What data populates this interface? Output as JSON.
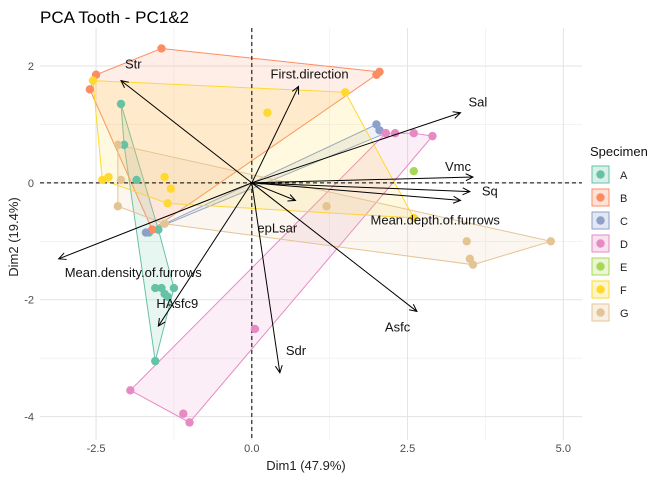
{
  "chart_data": {
    "type": "scatter",
    "title": "PCA Tooth - PC1&2",
    "xlabel": "Dim1 (47.9%)",
    "ylabel": "Dim2 (19.4%)",
    "xlim": [
      -3.4,
      5.3
    ],
    "ylim": [
      -4.4,
      2.65
    ],
    "x_ticks": [
      -2.5,
      0.0,
      2.5,
      5.0
    ],
    "x_tick_labels": [
      "-2.5",
      "0.0",
      "2.5",
      "5.0"
    ],
    "y_ticks": [
      -4,
      -2,
      0,
      2
    ],
    "y_tick_labels": [
      "-4",
      "-2",
      "0",
      "2"
    ],
    "grid": true,
    "reference_lines": {
      "x": 0,
      "y": 0,
      "style": "dashed"
    },
    "legend": {
      "title": "Specimen",
      "placement": "right"
    },
    "series": [
      {
        "name": "A",
        "color": "#66C2A5",
        "points": [
          [
            -2.1,
            1.35
          ],
          [
            -2.05,
            0.65
          ],
          [
            -1.85,
            0.05
          ],
          [
            -1.65,
            -0.85
          ],
          [
            -1.5,
            -0.8
          ],
          [
            -1.55,
            -1.8
          ],
          [
            -1.45,
            -1.8
          ],
          [
            -1.4,
            -1.9
          ],
          [
            -1.35,
            -1.95
          ],
          [
            -1.25,
            -1.8
          ],
          [
            -1.55,
            -3.05
          ]
        ]
      },
      {
        "name": "B",
        "color": "#FC8D62",
        "points": [
          [
            -1.45,
            2.3
          ],
          [
            -2.6,
            1.6
          ],
          [
            -2.5,
            1.85
          ],
          [
            2.0,
            1.85
          ],
          [
            2.05,
            1.9
          ],
          [
            -1.6,
            -0.8
          ]
        ]
      },
      {
        "name": "C",
        "color": "#8DA0CB",
        "points": [
          [
            2.0,
            1.0
          ],
          [
            2.15,
            0.85
          ],
          [
            2.05,
            0.9
          ],
          [
            -1.7,
            -0.85
          ]
        ]
      },
      {
        "name": "D",
        "color": "#E78AC3",
        "points": [
          [
            2.15,
            0.85
          ],
          [
            2.3,
            0.85
          ],
          [
            2.6,
            0.85
          ],
          [
            2.9,
            0.8
          ],
          [
            0.05,
            -2.5
          ],
          [
            -1.95,
            -3.55
          ],
          [
            -1.1,
            -3.95
          ],
          [
            -1.0,
            -4.1
          ]
        ]
      },
      {
        "name": "E",
        "color": "#A6D854",
        "points": [
          [
            2.6,
            0.2
          ]
        ]
      },
      {
        "name": "F",
        "color": "#FFD92F",
        "points": [
          [
            -2.55,
            1.75
          ],
          [
            -2.4,
            0.05
          ],
          [
            -2.3,
            0.1
          ],
          [
            -1.4,
            0.1
          ],
          [
            -1.3,
            -0.1
          ],
          [
            -1.35,
            -0.35
          ],
          [
            1.5,
            1.55
          ],
          [
            0.25,
            1.2
          ],
          [
            2.6,
            -0.6
          ]
        ]
      },
      {
        "name": "G",
        "color": "#E5C494",
        "points": [
          [
            -2.15,
            0.65
          ],
          [
            -2.1,
            0.05
          ],
          [
            -2.15,
            -0.4
          ],
          [
            -1.4,
            -0.7
          ],
          [
            1.2,
            -0.4
          ],
          [
            3.45,
            -1.0
          ],
          [
            3.5,
            -1.3
          ],
          [
            3.55,
            -1.4
          ],
          [
            4.8,
            -1.0
          ]
        ]
      }
    ],
    "variables": [
      {
        "name": "Str",
        "x": -2.1,
        "y": 1.75
      },
      {
        "name": "First.direction",
        "x": 0.75,
        "y": 1.65
      },
      {
        "name": "Sal",
        "x": 3.35,
        "y": 1.2
      },
      {
        "name": "Vmc",
        "x": 3.55,
        "y": 0.1
      },
      {
        "name": "Sq",
        "x": 3.5,
        "y": -0.15
      },
      {
        "name": "Mean.depth.of.furrows",
        "x": 3.35,
        "y": -0.3
      },
      {
        "name": "epLsar",
        "x": 0.7,
        "y": -0.3
      },
      {
        "name": "Mean.density.of.furrows",
        "x": -3.1,
        "y": -1.3
      },
      {
        "name": "HAsfc9",
        "x": -1.5,
        "y": -2.45
      },
      {
        "name": "Sdr",
        "x": 0.45,
        "y": -3.25
      },
      {
        "name": "Asfc",
        "x": 2.65,
        "y": -2.2
      }
    ]
  }
}
